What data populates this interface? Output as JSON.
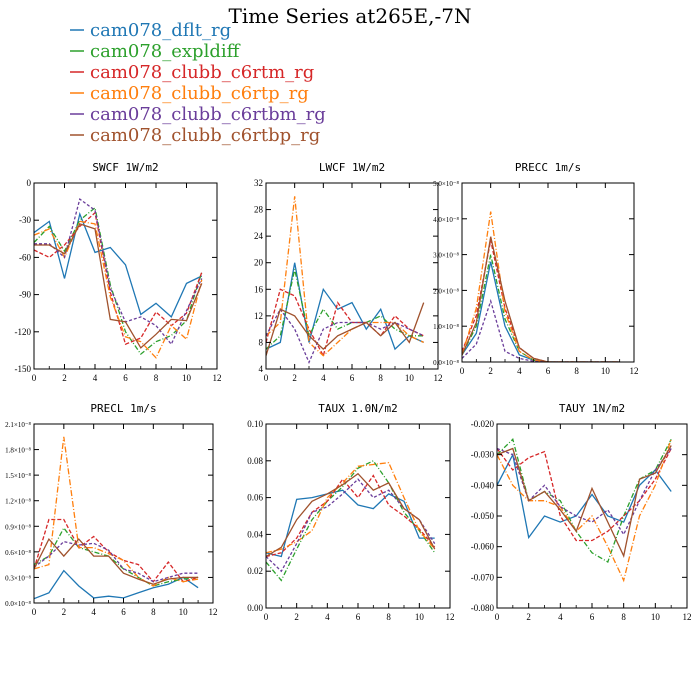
{
  "figure_title": "Time Series at265E,-7N",
  "colors": {
    "cam078_dflt_rg": "#1f77b4",
    "cam078_expldiff": "#2ca02c",
    "cam078_clubb_c6rtm_rg": "#d62728",
    "cam078_clubb_c6rtp_rg": "#ff7f0e",
    "cam078_clubb_c6rtbm_rg": "#6a3d9a",
    "cam078_clubb_c6rtbp_rg": "#a0522d"
  },
  "legend": [
    {
      "name": "cam078_dflt_rg",
      "color": "#1f77b4"
    },
    {
      "name": "cam078_expldiff",
      "color": "#2ca02c"
    },
    {
      "name": "cam078_clubb_c6rtm_rg",
      "color": "#d62728"
    },
    {
      "name": "cam078_clubb_c6rtp_rg",
      "color": "#ff7f0e"
    },
    {
      "name": "cam078_clubb_c6rtbm_rg",
      "color": "#6a3d9a"
    },
    {
      "name": "cam078_clubb_c6rtbp_rg",
      "color": "#a0522d"
    }
  ],
  "chart_data": [
    {
      "type": "line",
      "title": "SWCF   1W/m2",
      "x": [
        0,
        1,
        2,
        3,
        4,
        5,
        6,
        7,
        8,
        9,
        10,
        11
      ],
      "xlim": [
        0,
        12
      ],
      "xticks": [
        "0",
        "2",
        "4",
        "6",
        "8",
        "10",
        "12"
      ],
      "ylim": [
        -150,
        0
      ],
      "yticks": [
        -150,
        -120,
        -90,
        -60,
        -30,
        0
      ],
      "ytick_labels": [
        "-150",
        "-120",
        "-90",
        "-60",
        "-30",
        "0"
      ],
      "series": [
        {
          "name": "cam078_dflt_rg",
          "values": [
            -40,
            -31,
            -77,
            -25,
            -56,
            -52,
            -66,
            -106,
            -97,
            -108,
            -81,
            -75
          ]
        },
        {
          "name": "cam078_expldiff",
          "values": [
            -48,
            -35,
            -55,
            -30,
            -20,
            -82,
            -120,
            -138,
            -128,
            -123,
            -111,
            -72
          ]
        },
        {
          "name": "cam078_clubb_c6rtm_rg",
          "values": [
            -54,
            -60,
            -50,
            -35,
            -24,
            -88,
            -130,
            -125,
            -104,
            -115,
            -105,
            -72
          ]
        },
        {
          "name": "cam078_clubb_c6rtp_rg",
          "values": [
            -42,
            -37,
            -60,
            -31,
            -33,
            -92,
            -124,
            -128,
            -141,
            -115,
            -126,
            -78
          ]
        },
        {
          "name": "cam078_clubb_c6rtbm_rg",
          "values": [
            -49,
            -49,
            -60,
            -13,
            -22,
            -85,
            -112,
            -108,
            -115,
            -130,
            -103,
            -77
          ]
        },
        {
          "name": "cam078_clubb_c6rtbp_rg",
          "values": [
            -50,
            -50,
            -57,
            -33,
            -37,
            -110,
            -112,
            -133,
            -122,
            -110,
            -111,
            -81
          ]
        }
      ]
    },
    {
      "type": "line",
      "title": "LWCF   1W/m2",
      "x": [
        0,
        1,
        2,
        3,
        4,
        5,
        6,
        7,
        8,
        9,
        10,
        11
      ],
      "xlim": [
        0,
        12
      ],
      "xticks": [
        "0",
        "2",
        "4",
        "6",
        "8",
        "10",
        "12"
      ],
      "ylim": [
        4,
        32
      ],
      "yticks": [
        4,
        8,
        12,
        16,
        20,
        24,
        28,
        32
      ],
      "ytick_labels": [
        "4",
        "8",
        "12",
        "16",
        "20",
        "24",
        "28",
        "32"
      ],
      "series": [
        {
          "name": "cam078_dflt_rg",
          "values": [
            7,
            8,
            20,
            8,
            16,
            13,
            14,
            10,
            13,
            7,
            9,
            8
          ]
        },
        {
          "name": "cam078_expldiff",
          "values": [
            7,
            9,
            19,
            9,
            13,
            10,
            11,
            11,
            12,
            10,
            9,
            9
          ]
        },
        {
          "name": "cam078_clubb_c6rtm_rg",
          "values": [
            8,
            16,
            15,
            10,
            6,
            14,
            11,
            11,
            9,
            12,
            10,
            9
          ]
        },
        {
          "name": "cam078_clubb_c6rtp_rg",
          "values": [
            9,
            11,
            30,
            8,
            6,
            8,
            10,
            11,
            11,
            11,
            9,
            8
          ]
        },
        {
          "name": "cam078_clubb_c6rtbm_rg",
          "values": [
            9,
            13,
            10,
            5,
            10,
            11,
            11,
            11,
            10,
            11,
            10,
            9
          ]
        },
        {
          "name": "cam078_clubb_c6rtbp_rg",
          "values": [
            6,
            13,
            12,
            9,
            7,
            9,
            10,
            11,
            9,
            11,
            8,
            14
          ]
        }
      ]
    },
    {
      "type": "line",
      "title": "PRECC   1m/s",
      "x": [
        0,
        1,
        2,
        3,
        4,
        5,
        6,
        7,
        8,
        9,
        10,
        11
      ],
      "xlim": [
        0,
        12
      ],
      "xticks": [
        "0",
        "2",
        "4",
        "6",
        "8",
        "10",
        "12"
      ],
      "ylim": [
        0,
        5e-08
      ],
      "yticks": [
        0,
        1e-08,
        2e-08,
        3e-08,
        4e-08,
        5e-08
      ],
      "ytick_labels": [
        "0.0×10⁻⁸",
        "1.0×10⁻⁸",
        "2.0×10⁻⁸",
        "3.0×10⁻⁸",
        "4.0×10⁻⁸",
        "5.0×10⁻⁸"
      ],
      "series": [
        {
          "name": "cam078_dflt_rg",
          "values": [
            2e-09,
            8e-09,
            2.8e-08,
            1e-08,
            2e-09,
            5e-10,
            0,
            0,
            0,
            0,
            0,
            0
          ]
        },
        {
          "name": "cam078_expldiff",
          "values": [
            2e-09,
            1e-08,
            3e-08,
            1.2e-08,
            3e-09,
            5e-10,
            0,
            0,
            0,
            0,
            0,
            0
          ]
        },
        {
          "name": "cam078_clubb_c6rtm_rg",
          "values": [
            3e-09,
            1.3e-08,
            3.4e-08,
            1.5e-08,
            4e-09,
            1e-09,
            0,
            0,
            0,
            0,
            0,
            0
          ]
        },
        {
          "name": "cam078_clubb_c6rtp_rg",
          "values": [
            2e-09,
            1.5e-08,
            4.2e-08,
            1.4e-08,
            3e-09,
            5e-10,
            0,
            0,
            0,
            0,
            0,
            0
          ]
        },
        {
          "name": "cam078_clubb_c6rtbm_rg",
          "values": [
            1e-09,
            5e-09,
            1.7e-08,
            3e-09,
            1e-09,
            2e-10,
            0,
            0,
            0,
            0,
            0,
            0
          ]
        },
        {
          "name": "cam078_clubb_c6rtbp_rg",
          "values": [
            2e-09,
            1.1e-08,
            3.5e-08,
            1.7e-08,
            4e-09,
            1e-09,
            0,
            0,
            0,
            0,
            0,
            0
          ]
        }
      ]
    },
    {
      "type": "line",
      "title": "PRECL   1m/s",
      "x": [
        0,
        1,
        2,
        3,
        4,
        5,
        6,
        7,
        8,
        9,
        10,
        11
      ],
      "xlim": [
        0,
        12
      ],
      "xticks": [
        "0",
        "2",
        "4",
        "6",
        "8",
        "10",
        "12"
      ],
      "ylim": [
        0,
        2.1e-08
      ],
      "yticks": [
        0,
        3e-09,
        6e-09,
        9e-09,
        1.2e-08,
        1.5e-08,
        1.8e-08,
        2.1e-08
      ],
      "ytick_labels": [
        "0.0×10⁻⁸",
        "0.3×10⁻⁸",
        "0.6×10⁻⁸",
        "0.9×10⁻⁸",
        "1.2×10⁻⁸",
        "1.5×10⁻⁸",
        "1.8×10⁻⁸",
        "2.1×10⁻⁸"
      ],
      "series": [
        {
          "name": "cam078_dflt_rg",
          "values": [
            5e-10,
            1.2e-09,
            3.8e-09,
            2e-09,
            6e-10,
            8e-10,
            6e-10,
            1.2e-09,
            1.8e-09,
            2.2e-09,
            3e-09,
            1.8e-09
          ]
        },
        {
          "name": "cam078_expldiff",
          "values": [
            4.5e-09,
            5.5e-09,
            8.8e-09,
            6.5e-09,
            6e-09,
            5.5e-09,
            4e-09,
            3e-09,
            2e-09,
            2.5e-09,
            2.8e-09,
            3e-09
          ]
        },
        {
          "name": "cam078_clubb_c6rtm_rg",
          "values": [
            4e-09,
            9.8e-09,
            9.8e-09,
            6.5e-09,
            7.8e-09,
            6e-09,
            5e-09,
            4.5e-09,
            2.5e-09,
            4.8e-09,
            2.5e-09,
            3e-09
          ]
        },
        {
          "name": "cam078_clubb_c6rtp_rg",
          "values": [
            4e-09,
            4.5e-09,
            1.95e-08,
            6.5e-09,
            6.5e-09,
            5.8e-09,
            5e-09,
            3e-09,
            2e-09,
            3e-09,
            2.5e-09,
            2.8e-09
          ]
        },
        {
          "name": "cam078_clubb_c6rtbm_rg",
          "values": [
            4.2e-09,
            5.5e-09,
            7.2e-09,
            6.8e-09,
            7e-09,
            6.2e-09,
            4e-09,
            3.5e-09,
            2.5e-09,
            3e-09,
            3.5e-09,
            3.5e-09
          ]
        },
        {
          "name": "cam078_clubb_c6rtbp_rg",
          "values": [
            4e-09,
            7.5e-09,
            5.5e-09,
            7.5e-09,
            5.5e-09,
            5.5e-09,
            3.5e-09,
            2.8e-09,
            2.2e-09,
            2.8e-09,
            3e-09,
            3e-09
          ]
        }
      ]
    },
    {
      "type": "line",
      "title": "TAUX   1.0N/m2",
      "x": [
        0,
        1,
        2,
        3,
        4,
        5,
        6,
        7,
        8,
        9,
        10,
        11
      ],
      "xlim": [
        0,
        12
      ],
      "xticks": [
        "0",
        "2",
        "4",
        "6",
        "8",
        "10",
        "12"
      ],
      "ylim": [
        0,
        0.1
      ],
      "yticks": [
        0,
        0.02,
        0.04,
        0.06,
        0.08,
        0.1
      ],
      "ytick_labels": [
        "0.00",
        "0.02",
        "0.04",
        "0.06",
        "0.08",
        "0.10"
      ],
      "series": [
        {
          "name": "cam078_dflt_rg",
          "values": [
            0.03,
            0.028,
            0.059,
            0.06,
            0.062,
            0.064,
            0.056,
            0.054,
            0.062,
            0.058,
            0.038,
            0.038
          ]
        },
        {
          "name": "cam078_expldiff",
          "values": [
            0.025,
            0.015,
            0.032,
            0.048,
            0.058,
            0.066,
            0.076,
            0.08,
            0.068,
            0.052,
            0.042,
            0.03
          ]
        },
        {
          "name": "cam078_clubb_c6rtm_rg",
          "values": [
            0.028,
            0.03,
            0.038,
            0.052,
            0.058,
            0.07,
            0.06,
            0.072,
            0.056,
            0.05,
            0.043,
            0.033
          ]
        },
        {
          "name": "cam078_clubb_c6rtp_rg",
          "values": [
            0.03,
            0.032,
            0.036,
            0.042,
            0.06,
            0.068,
            0.077,
            0.078,
            0.079,
            0.06,
            0.042,
            0.032
          ]
        },
        {
          "name": "cam078_clubb_c6rtbm_rg",
          "values": [
            0.028,
            0.02,
            0.035,
            0.052,
            0.055,
            0.062,
            0.07,
            0.06,
            0.064,
            0.054,
            0.048,
            0.035
          ]
        },
        {
          "name": "cam078_clubb_c6rtbp_rg",
          "values": [
            0.028,
            0.033,
            0.048,
            0.058,
            0.062,
            0.067,
            0.073,
            0.064,
            0.068,
            0.054,
            0.048,
            0.032
          ]
        }
      ]
    },
    {
      "type": "line",
      "title": "TAUY   1N/m2",
      "x": [
        0,
        1,
        2,
        3,
        4,
        5,
        6,
        7,
        8,
        9,
        10,
        11
      ],
      "xlim": [
        0,
        12
      ],
      "xticks": [
        "0",
        "2",
        "4",
        "6",
        "8",
        "10",
        "12"
      ],
      "ylim": [
        -0.08,
        -0.02
      ],
      "yticks": [
        -0.08,
        -0.07,
        -0.06,
        -0.05,
        -0.04,
        -0.03,
        -0.02
      ],
      "ytick_labels": [
        "-0.080",
        "-0.070",
        "-0.060",
        "-0.050",
        "-0.040",
        "-0.030",
        "-0.020"
      ],
      "series": [
        {
          "name": "cam078_dflt_rg",
          "values": [
            -0.04,
            -0.03,
            -0.057,
            -0.05,
            -0.052,
            -0.05,
            -0.043,
            -0.05,
            -0.052,
            -0.04,
            -0.035,
            -0.042
          ]
        },
        {
          "name": "cam078_expldiff",
          "values": [
            -0.03,
            -0.025,
            -0.045,
            -0.042,
            -0.045,
            -0.055,
            -0.062,
            -0.065,
            -0.05,
            -0.038,
            -0.035,
            -0.025
          ]
        },
        {
          "name": "cam078_clubb_c6rtm_rg",
          "values": [
            -0.028,
            -0.035,
            -0.031,
            -0.029,
            -0.05,
            -0.058,
            -0.058,
            -0.055,
            -0.05,
            -0.045,
            -0.038,
            -0.028
          ]
        },
        {
          "name": "cam078_clubb_c6rtp_rg",
          "values": [
            -0.03,
            -0.04,
            -0.045,
            -0.045,
            -0.047,
            -0.055,
            -0.05,
            -0.06,
            -0.071,
            -0.05,
            -0.04,
            -0.025
          ]
        },
        {
          "name": "cam078_clubb_c6rtbm_rg",
          "values": [
            -0.028,
            -0.03,
            -0.045,
            -0.04,
            -0.047,
            -0.05,
            -0.052,
            -0.048,
            -0.056,
            -0.045,
            -0.035,
            -0.028
          ]
        },
        {
          "name": "cam078_clubb_c6rtbp_rg",
          "values": [
            -0.03,
            -0.028,
            -0.045,
            -0.042,
            -0.048,
            -0.055,
            -0.041,
            -0.052,
            -0.063,
            -0.038,
            -0.036,
            -0.027
          ]
        }
      ]
    }
  ]
}
